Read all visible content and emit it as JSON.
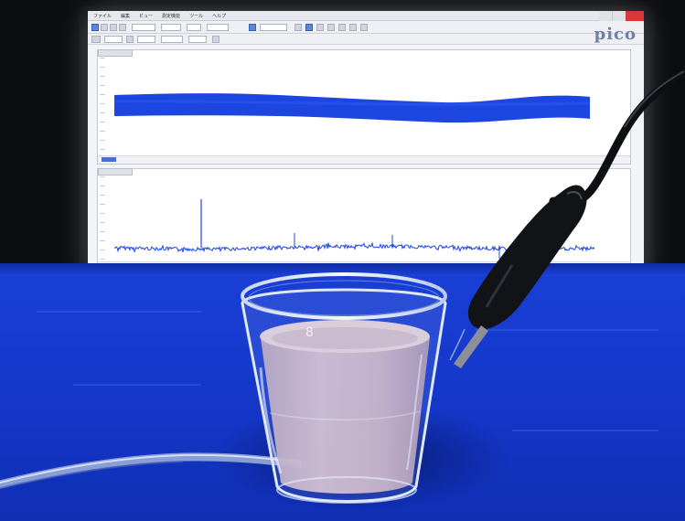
{
  "photo": {
    "subject": "",
    "colors": {
      "cloth": "#173bcf",
      "screen": "#f3f4f7",
      "trace": "#1b46e0",
      "liquid": "#c9b4c6",
      "probe": "#121316"
    }
  },
  "screen": {
    "logo": "pico",
    "menu_items": [
      "ファイル",
      "編集",
      "ビュー",
      "測定機能",
      "ツール",
      "ヘルプ"
    ]
  }
}
